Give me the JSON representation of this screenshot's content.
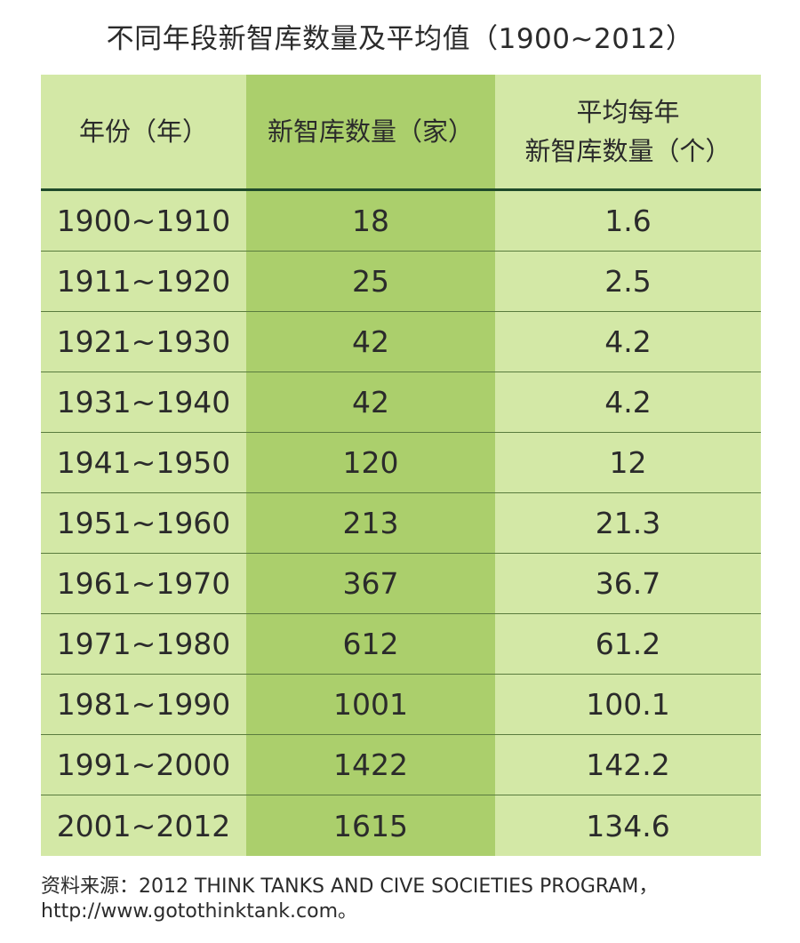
{
  "title": "不同年段新智库数量及平均值（1900~2012）",
  "chart_data": {
    "type": "table",
    "title": "不同年段新智库数量及平均值（1900~2012）",
    "columns": [
      "年份（年）",
      "新智库数量（家）",
      "平均每年 新智库数量（个）"
    ],
    "header": {
      "col1": "年份（年）",
      "col2": "新智库数量（家）",
      "col3_line1": "平均每年",
      "col3_line2": "新智库数量（个）"
    },
    "rows": [
      {
        "period": "1900~1910",
        "count": "18",
        "avg": "1.6"
      },
      {
        "period": "1911~1920",
        "count": "25",
        "avg": "2.5"
      },
      {
        "period": "1921~1930",
        "count": "42",
        "avg": "4.2"
      },
      {
        "period": "1931~1940",
        "count": "42",
        "avg": "4.2"
      },
      {
        "period": "1941~1950",
        "count": "120",
        "avg": "12"
      },
      {
        "period": "1951~1960",
        "count": "213",
        "avg": "21.3"
      },
      {
        "period": "1961~1970",
        "count": "367",
        "avg": "36.7"
      },
      {
        "period": "1971~1980",
        "count": "612",
        "avg": "61.2"
      },
      {
        "period": "1981~1990",
        "count": "1001",
        "avg": "100.1"
      },
      {
        "period": "1991~2000",
        "count": "1422",
        "avg": "142.2"
      },
      {
        "period": "2001~2012",
        "count": "1615",
        "avg": "134.6"
      }
    ]
  },
  "source": {
    "line1": "资料来源：2012 THINK TANKS AND CIVE SOCIETIES PROGRAM，",
    "line2": "http://www.gotothinktank.com。"
  },
  "colors": {
    "table_bg": "#d3e8a6",
    "highlight_column": "#abcf6c",
    "header_rule": "#1f4a2a",
    "row_rule": "#5a7c3e"
  }
}
